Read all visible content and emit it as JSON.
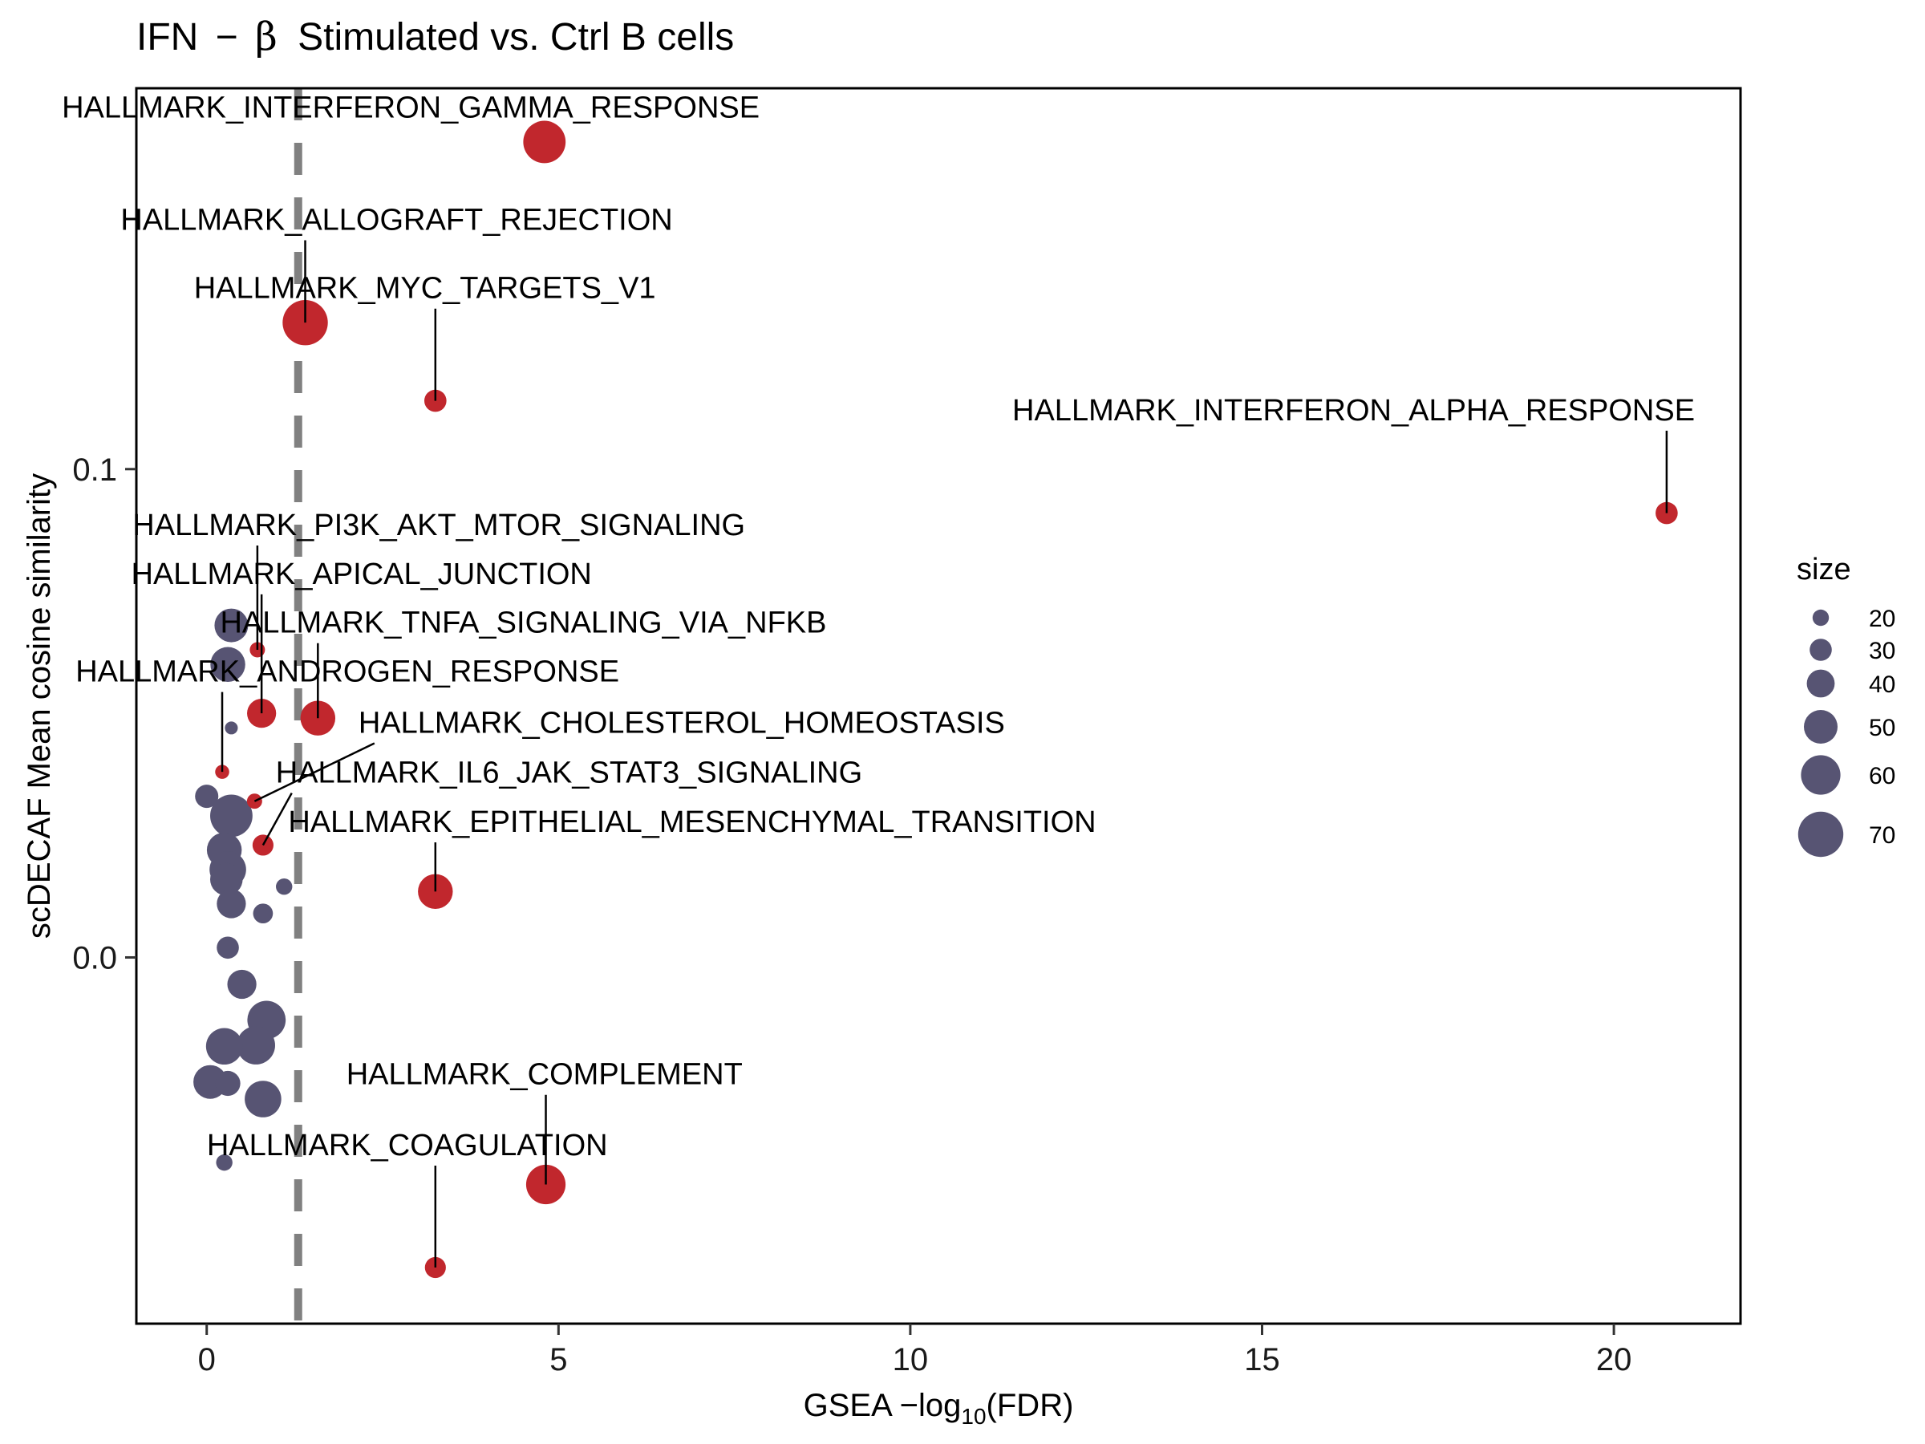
{
  "chart_data": {
    "type": "scatter",
    "title_text": "IFN",
    "title_sep": "−",
    "title_greek": "β",
    "title_rest": "Stimulated vs. Ctrl B cells",
    "xlabel_pre": "GSEA −log",
    "xlabel_sub": "10",
    "xlabel_post": "(FDR)",
    "ylabel": "scDECAF Mean cosine similarity",
    "xlim": [
      -1,
      21.8
    ],
    "ylim": [
      -0.075,
      0.178
    ],
    "xticks": [
      0,
      5,
      10,
      15,
      20
    ],
    "xtick_labels": [
      "0",
      "5",
      "10",
      "15",
      "20"
    ],
    "yticks": [
      0.0,
      0.1
    ],
    "ytick_labels": [
      "0.0",
      "0.1"
    ],
    "threshold_x": 1.3,
    "grid": false,
    "colors": {
      "significant": "#c1272d",
      "non_significant": "#575473",
      "threshold_line": "#808080"
    },
    "legend": {
      "title": "size",
      "placement": "right",
      "entries": [
        {
          "label": "20",
          "size": 20
        },
        {
          "label": "30",
          "size": 30
        },
        {
          "label": "40",
          "size": 40
        },
        {
          "label": "50",
          "size": 50
        },
        {
          "label": "60",
          "size": 60
        },
        {
          "label": "70",
          "size": 70
        }
      ]
    },
    "labeled_points": [
      {
        "label": "HALLMARK_INTERFERON_GAMMA_RESPONSE",
        "x": 4.8,
        "y": 0.167,
        "size": 65,
        "label_x": 2.9,
        "label_y": 0.172,
        "leader": false
      },
      {
        "label": "HALLMARK_ALLOGRAFT_REJECTION",
        "x": 1.4,
        "y": 0.13,
        "size": 70,
        "label_x": 2.7,
        "label_y": 0.149,
        "leader": true
      },
      {
        "label": "HALLMARK_MYC_TARGETS_V1",
        "x": 3.25,
        "y": 0.114,
        "size": 30,
        "label_x": 3.1,
        "label_y": 0.135,
        "leader": true
      },
      {
        "label": "HALLMARK_INTERFERON_ALPHA_RESPONSE",
        "x": 20.75,
        "y": 0.091,
        "size": 30,
        "label_x": 16.3,
        "label_y": 0.11,
        "leader": true
      },
      {
        "label": "HALLMARK_PI3K_AKT_MTOR_SIGNALING",
        "x": 0.72,
        "y": 0.063,
        "size": 18,
        "label_x": 3.3,
        "label_y": 0.0865,
        "leader": true
      },
      {
        "label": "HALLMARK_APICAL_JUNCTION",
        "x": 0.78,
        "y": 0.05,
        "size": 42,
        "label_x": 2.2,
        "label_y": 0.0765,
        "leader": true
      },
      {
        "label": "HALLMARK_TNFA_SIGNALING_VIA_NFKB",
        "x": 1.58,
        "y": 0.049,
        "size": 52,
        "label_x": 4.5,
        "label_y": 0.0665,
        "leader": true
      },
      {
        "label": "HALLMARK_ANDROGEN_RESPONSE",
        "x": 0.22,
        "y": 0.038,
        "size": 16,
        "label_x": 2.0,
        "label_y": 0.0565,
        "leader": true
      },
      {
        "label": "HALLMARK_CHOLESTEROL_HOMEOSTASIS",
        "x": 0.68,
        "y": 0.032,
        "size": 18,
        "label_x": 6.75,
        "label_y": 0.046,
        "leader": true
      },
      {
        "label": "HALLMARK_IL6_JAK_STAT3_SIGNALING",
        "x": 0.8,
        "y": 0.023,
        "size": 28,
        "label_x": 5.15,
        "label_y": 0.0358,
        "leader": true
      },
      {
        "label": "HALLMARK_EPITHELIAL_MESENCHYMAL_TRANSITION",
        "x": 3.25,
        "y": 0.0135,
        "size": 52,
        "label_x": 6.9,
        "label_y": 0.0257,
        "leader": true
      },
      {
        "label": "HALLMARK_COMPLEMENT",
        "x": 4.82,
        "y": -0.0465,
        "size": 60,
        "label_x": 4.8,
        "label_y": -0.026,
        "leader": true
      },
      {
        "label": "HALLMARK_COAGULATION",
        "x": 3.25,
        "y": -0.0635,
        "size": 28,
        "label_x": 2.85,
        "label_y": -0.0405,
        "leader": true
      }
    ],
    "other_points": [
      {
        "x": 0.35,
        "y": 0.068,
        "size": 50
      },
      {
        "x": 0.3,
        "y": 0.06,
        "size": 52
      },
      {
        "x": 0.35,
        "y": 0.047,
        "size": 14
      },
      {
        "x": 0.0,
        "y": 0.033,
        "size": 32
      },
      {
        "x": 0.35,
        "y": 0.029,
        "size": 65
      },
      {
        "x": 0.25,
        "y": 0.022,
        "size": 52
      },
      {
        "x": 0.3,
        "y": 0.018,
        "size": 55
      },
      {
        "x": 0.28,
        "y": 0.016,
        "size": 48
      },
      {
        "x": 1.1,
        "y": 0.0145,
        "size": 20
      },
      {
        "x": 0.35,
        "y": 0.011,
        "size": 42
      },
      {
        "x": 0.8,
        "y": 0.009,
        "size": 26
      },
      {
        "x": 0.3,
        "y": 0.002,
        "size": 30
      },
      {
        "x": 0.5,
        "y": -0.0055,
        "size": 42
      },
      {
        "x": 0.85,
        "y": -0.0128,
        "size": 58
      },
      {
        "x": 0.7,
        "y": -0.018,
        "size": 58
      },
      {
        "x": 0.25,
        "y": -0.0182,
        "size": 55
      },
      {
        "x": 0.05,
        "y": -0.0255,
        "size": 50
      },
      {
        "x": 0.3,
        "y": -0.0258,
        "size": 35
      },
      {
        "x": 0.8,
        "y": -0.029,
        "size": 55
      },
      {
        "x": 0.25,
        "y": -0.042,
        "size": 20
      }
    ]
  }
}
